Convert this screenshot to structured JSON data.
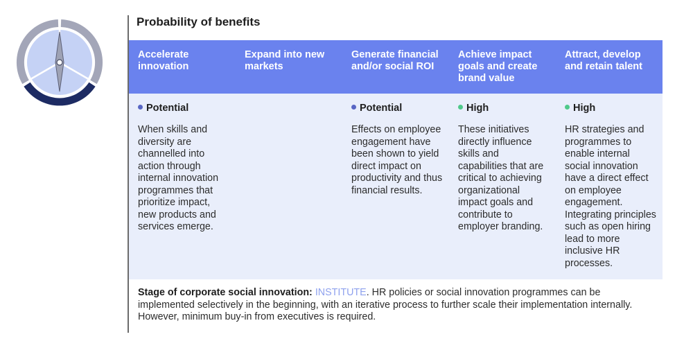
{
  "title": "Probability of benefits",
  "colors": {
    "header_bg": "#6a82ee",
    "body_bg": "#e9eefb",
    "potential_dot": "#5866c4",
    "high_dot": "#4fc98a",
    "stage_highlight": "#8ea1ee"
  },
  "icon": {
    "name": "compass-icon"
  },
  "columns": [
    {
      "header": "Accelerate innovation",
      "level": "Potential",
      "level_color": "#5866c4",
      "description": "When skills and diversity are channelled into action through internal innovation programmes that prioritize impact, new products and services emerge."
    },
    {
      "header": "Expand into new markets",
      "level": "",
      "level_color": "",
      "description": ""
    },
    {
      "header": "Generate financial and/or social ROI",
      "level": "Potential",
      "level_color": "#5866c4",
      "description": "Effects on employee engagement have been shown to yield direct impact on productivity and thus financial results."
    },
    {
      "header": "Achieve impact goals and create brand value",
      "level": "High",
      "level_color": "#4fc98a",
      "description": "These initiatives directly influence skills and capabilities that are critical to achieving organizational impact goals and contribute to employer branding."
    },
    {
      "header": "Attract, develop and retain talent",
      "level": "High",
      "level_color": "#4fc98a",
      "description": "HR strategies and programmes to enable internal social innovation have a direct effect on employee engagement. Integrating principles such as open hiring lead to more inclusive HR processes."
    }
  ],
  "footer": {
    "stage_label": "Stage of corporate social innovation:",
    "stage_value": "INSTITUTE",
    "text": ". HR policies or social innovation programmes can be implemented selectively in the beginning, with an iterative process to further scale their implementation internally. However, minimum buy-in from executives is required."
  }
}
